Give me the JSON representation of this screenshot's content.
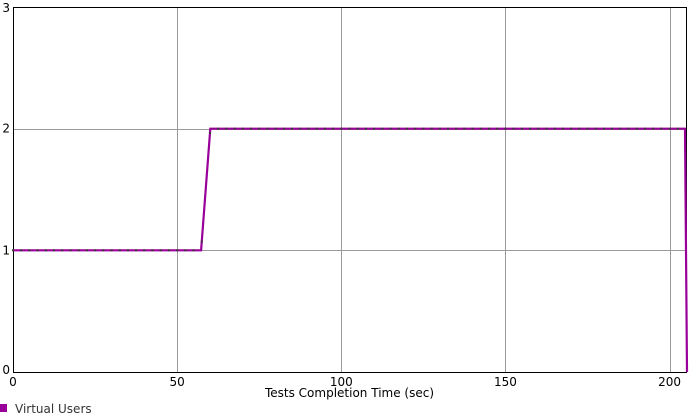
{
  "chart_data": {
    "type": "line",
    "title": "",
    "xlabel": "Tests Completion Time (sec)",
    "ylabel": "",
    "xlim": [
      0,
      205
    ],
    "ylim": [
      0,
      3
    ],
    "grid": true,
    "legend_position": "bottom-left",
    "x_ticks": [
      {
        "value": 0,
        "label": "0"
      },
      {
        "value": 50,
        "label": "50"
      },
      {
        "value": 100,
        "label": "100"
      },
      {
        "value": 150,
        "label": "150"
      },
      {
        "value": 200,
        "label": "200"
      }
    ],
    "y_ticks": [
      {
        "value": 0,
        "label": "0"
      },
      {
        "value": 1,
        "label": "1"
      },
      {
        "value": 2,
        "label": "2"
      },
      {
        "value": 3,
        "label": "3"
      }
    ],
    "series": [
      {
        "name": "Virtual Users",
        "color": "#990099",
        "x": [
          0,
          57.3,
          60.1,
          204.7,
          205.3
        ],
        "y": [
          1,
          1,
          2,
          2,
          0
        ]
      }
    ],
    "marker_color": "#3a3a3a",
    "marker_interval": 2.5
  }
}
